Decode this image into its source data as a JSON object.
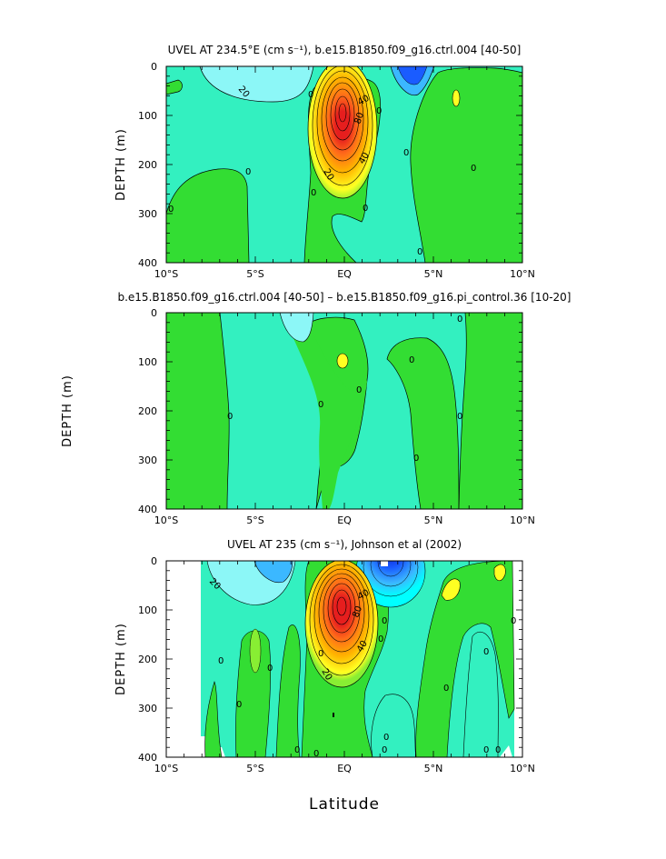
{
  "x_axis": {
    "tick_labels": [
      "10°S",
      "5°S",
      "EQ",
      "5°N",
      "10°N"
    ],
    "title": "Latitude"
  },
  "colors": {
    "cyan": "#00ffff",
    "light_cyan": "#8cf7f7",
    "aqua_green": "#33f0c0",
    "green": "#33dd33",
    "light_green": "#88ee33",
    "yellow": "#ffff22",
    "orange": "#ffb400",
    "red_orange": "#ff6a1a",
    "red": "#e61e1e",
    "sky_blue": "#3bb8ff",
    "blue": "#1a5cff",
    "dark_blue": "#0b1fd0",
    "axis": "#000000"
  },
  "chart_data": [
    {
      "type": "contour",
      "title": "UVEL AT 234.5°E (cm s⁻¹), b.e15.B1850.f09_g16.ctrl.004 [40-50]",
      "ylabel": "DEPTH (m)",
      "xlabel": "",
      "xlim": [
        -10,
        10
      ],
      "ylim": [
        400,
        0
      ],
      "y_ticks": [
        "0",
        "100",
        "200",
        "300",
        "400"
      ],
      "contour_labels": [
        "20",
        "0",
        "0",
        "0",
        "0",
        "0",
        "0",
        "0",
        "40",
        "40",
        "80",
        "20",
        "0",
        "0"
      ]
    },
    {
      "type": "contour",
      "title": "b.e15.B1850.f09_g16.ctrl.004 [40-50] – b.e15.B1850.f09_g16.pi_control.36 [10-20]",
      "ylabel": "DEPTH (m)",
      "xlabel": "",
      "xlim": [
        -10,
        10
      ],
      "ylim": [
        400,
        0
      ],
      "y_ticks": [
        "0",
        "100",
        "200",
        "300",
        "400"
      ],
      "contour_labels": [
        "0",
        "0",
        "0",
        "0",
        "0",
        "0",
        "0"
      ]
    },
    {
      "type": "contour",
      "title": "UVEL AT 235 (cm s⁻¹), Johnson et al (2002)",
      "ylabel": "DEPTH (m)",
      "xlabel": "Latitude",
      "xlim": [
        -10,
        10
      ],
      "ylim": [
        400,
        0
      ],
      "y_ticks": [
        "0",
        "100",
        "200",
        "300",
        "400"
      ],
      "contour_labels": [
        "20",
        "0",
        "0",
        "0",
        "0",
        "0",
        "0",
        "0",
        "40",
        "40",
        "80",
        "20",
        "0",
        "0",
        "0",
        "0",
        "0",
        "0",
        "0",
        "0"
      ]
    }
  ]
}
